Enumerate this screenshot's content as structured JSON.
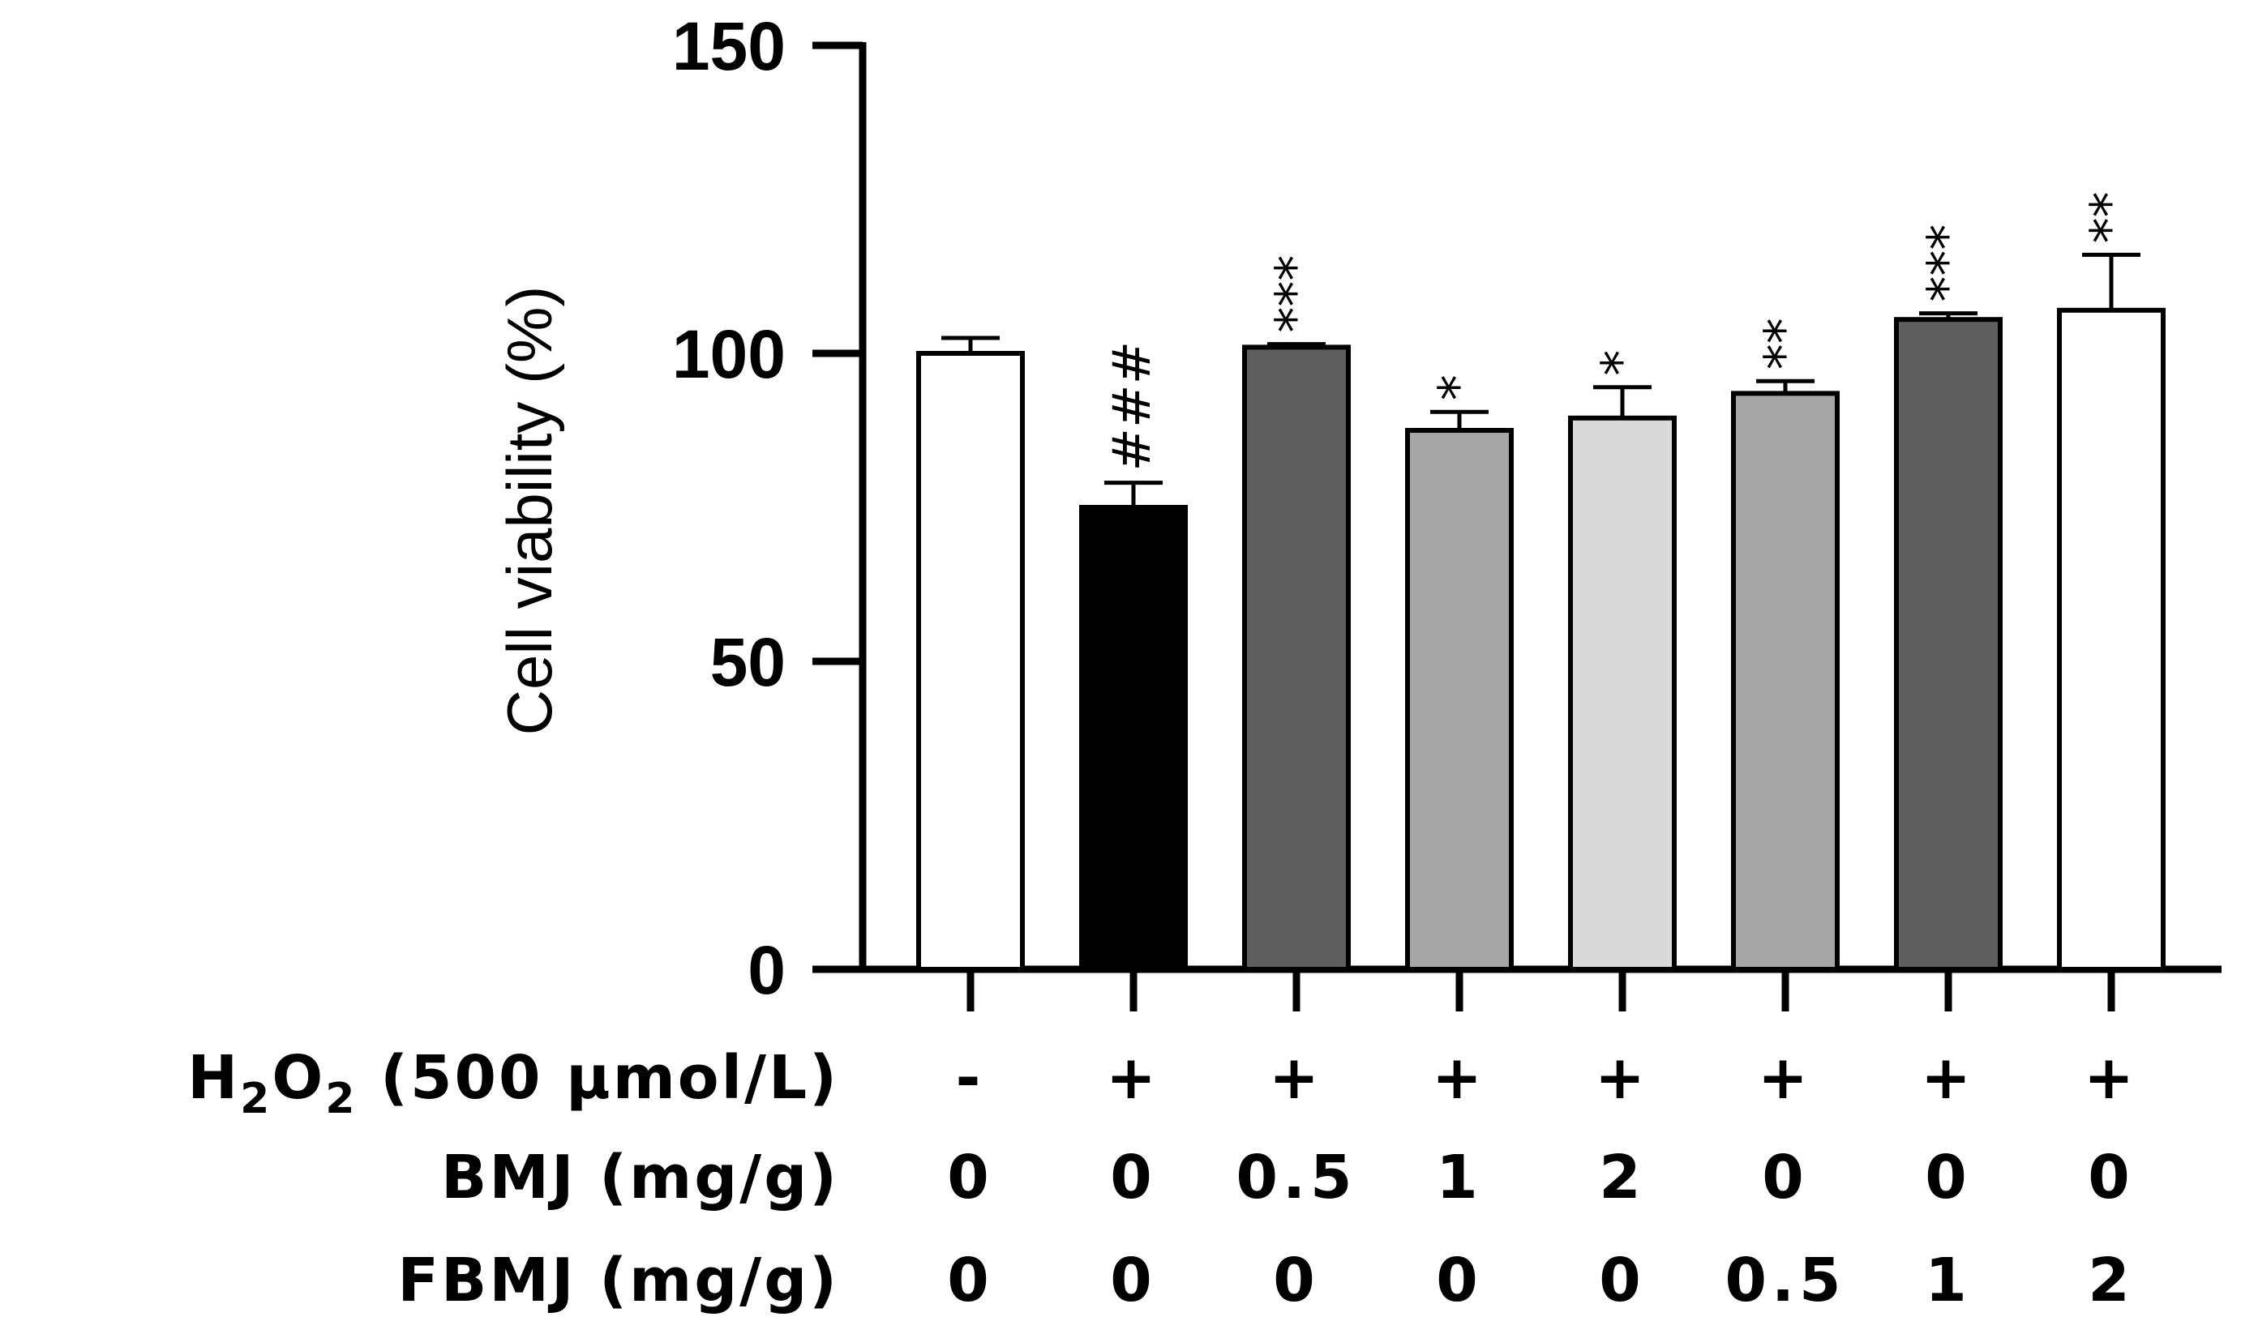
{
  "chart_data": {
    "type": "bar",
    "title": "",
    "xlabel": "",
    "ylabel": "Cell viability (%)",
    "ylim": [
      0,
      150
    ],
    "yticks": [
      0,
      50,
      100,
      150
    ],
    "values": [
      100,
      75,
      101,
      87.5,
      89.5,
      93.5,
      105.5,
      107
    ],
    "errors": [
      2.5,
      4,
      0.5,
      3,
      5,
      2,
      1,
      9
    ],
    "colors": [
      "#ffffff",
      "#000000",
      "#5f5f5f",
      "#a6a6a6",
      "#d9d9d9",
      "#a6a6a6",
      "#5f5f5f",
      "#ffffff"
    ],
    "significance": [
      "",
      "###",
      "***",
      "*",
      "*",
      "**",
      "***",
      "**"
    ],
    "conditions": [
      {
        "label": "H",
        "sub1": "2",
        "mid": "O",
        "sub2": "2",
        "rest": " (500 μmol/L)",
        "values": [
          "-",
          "+",
          "+",
          "+",
          "+",
          "+",
          "+",
          "+"
        ]
      },
      {
        "label": "BMJ (mg/g)",
        "values": [
          "0",
          "0",
          "0.5",
          "1",
          "2",
          "0",
          "0",
          "0"
        ]
      },
      {
        "label": "FBMJ (mg/g)",
        "values": [
          "0",
          "0",
          "0",
          "0",
          "0",
          "0.5",
          "1",
          "2"
        ]
      }
    ]
  }
}
